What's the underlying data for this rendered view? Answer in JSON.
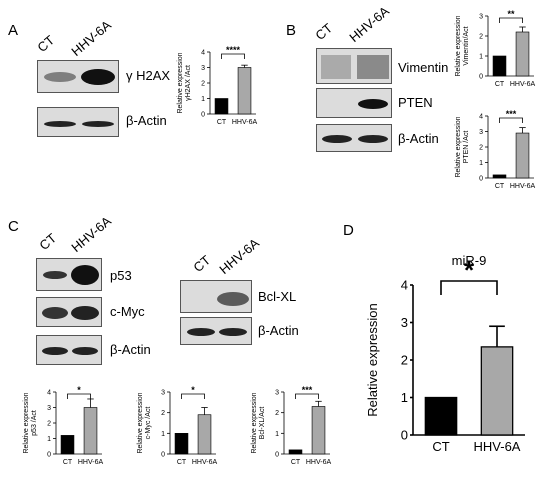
{
  "panels": {
    "A": {
      "letter": "A",
      "lanes": [
        "CT",
        "HHV-6A"
      ],
      "blots": [
        "γ H2AX",
        "β-Actin"
      ]
    },
    "B": {
      "letter": "B",
      "lanes": [
        "CT",
        "HHV-6A"
      ],
      "blots": [
        "Vimentin",
        "PTEN",
        "β-Actin"
      ]
    },
    "C": {
      "letter": "C",
      "lanes_left": [
        "CT",
        "HHV-6A"
      ],
      "blots_left": [
        "p53",
        "c-Myc",
        "β-Actin"
      ],
      "lanes_right": [
        "CT",
        "HHV-6A"
      ],
      "blots_right": [
        "Bcl-XL",
        "β-Actin"
      ]
    },
    "D": {
      "letter": "D"
    }
  },
  "colors": {
    "ct_bar": "#000000",
    "hhv_bar": "#a8a8a8",
    "band": "#1a1a1a"
  },
  "chart_data": [
    {
      "id": "A",
      "type": "bar",
      "categories": [
        "CT",
        "HHV-6A"
      ],
      "values": [
        1.0,
        3.0
      ],
      "errors": [
        0,
        0.15
      ],
      "ylabel": "Relative expression γH2AX /Act",
      "ylim": [
        0,
        4
      ],
      "yticks": [
        "0",
        "1",
        "2",
        "3",
        "4"
      ],
      "significance": "****"
    },
    {
      "id": "B1",
      "type": "bar",
      "categories": [
        "CT",
        "HHV-6A"
      ],
      "values": [
        1.0,
        2.2
      ],
      "errors": [
        0,
        0.25
      ],
      "ylabel": "Relative expression Vimentin/Act",
      "ylim": [
        0,
        3
      ],
      "yticks": [
        "0",
        "1",
        "2",
        "3"
      ],
      "significance": "**"
    },
    {
      "id": "B2",
      "type": "bar",
      "categories": [
        "CT",
        "HHV-6A"
      ],
      "values": [
        0.2,
        2.9
      ],
      "errors": [
        0,
        0.35
      ],
      "ylabel": "Relative expression PTEN /Act",
      "ylim": [
        0,
        4
      ],
      "yticks": [
        "0",
        "1",
        "2",
        "3",
        "4"
      ],
      "significance": "***"
    },
    {
      "id": "C1",
      "type": "bar",
      "categories": [
        "CT",
        "HHV-6A"
      ],
      "values": [
        1.2,
        3.0
      ],
      "errors": [
        0,
        0.55
      ],
      "ylabel": "Relative expression p53 /Act",
      "ylim": [
        0,
        4
      ],
      "yticks": [
        "0",
        "1",
        "2",
        "3",
        "4"
      ],
      "significance": "*"
    },
    {
      "id": "C2",
      "type": "bar",
      "categories": [
        "CT",
        "HHV-6A"
      ],
      "values": [
        1.0,
        1.9
      ],
      "errors": [
        0,
        0.35
      ],
      "ylabel": "Relative expression c-Myc /Act",
      "ylim": [
        0,
        3
      ],
      "yticks": [
        "0",
        "1",
        "2",
        "3"
      ],
      "significance": "*"
    },
    {
      "id": "C3",
      "type": "bar",
      "categories": [
        "CT",
        "HHV-6A"
      ],
      "values": [
        0.2,
        2.3
      ],
      "errors": [
        0,
        0.25
      ],
      "ylabel": "Relative expression Bcl-XL/Act",
      "ylim": [
        0,
        3
      ],
      "yticks": [
        "0",
        "1",
        "2",
        "3"
      ],
      "significance": "***"
    },
    {
      "id": "D",
      "type": "bar",
      "title": "miR-9",
      "categories": [
        "CT",
        "HHV-6A"
      ],
      "values": [
        1.0,
        2.35
      ],
      "errors": [
        0,
        0.55
      ],
      "ylabel": "Relative expression",
      "ylim": [
        0,
        4
      ],
      "yticks": [
        "0",
        "1",
        "2",
        "3",
        "4"
      ],
      "significance": "*"
    }
  ]
}
